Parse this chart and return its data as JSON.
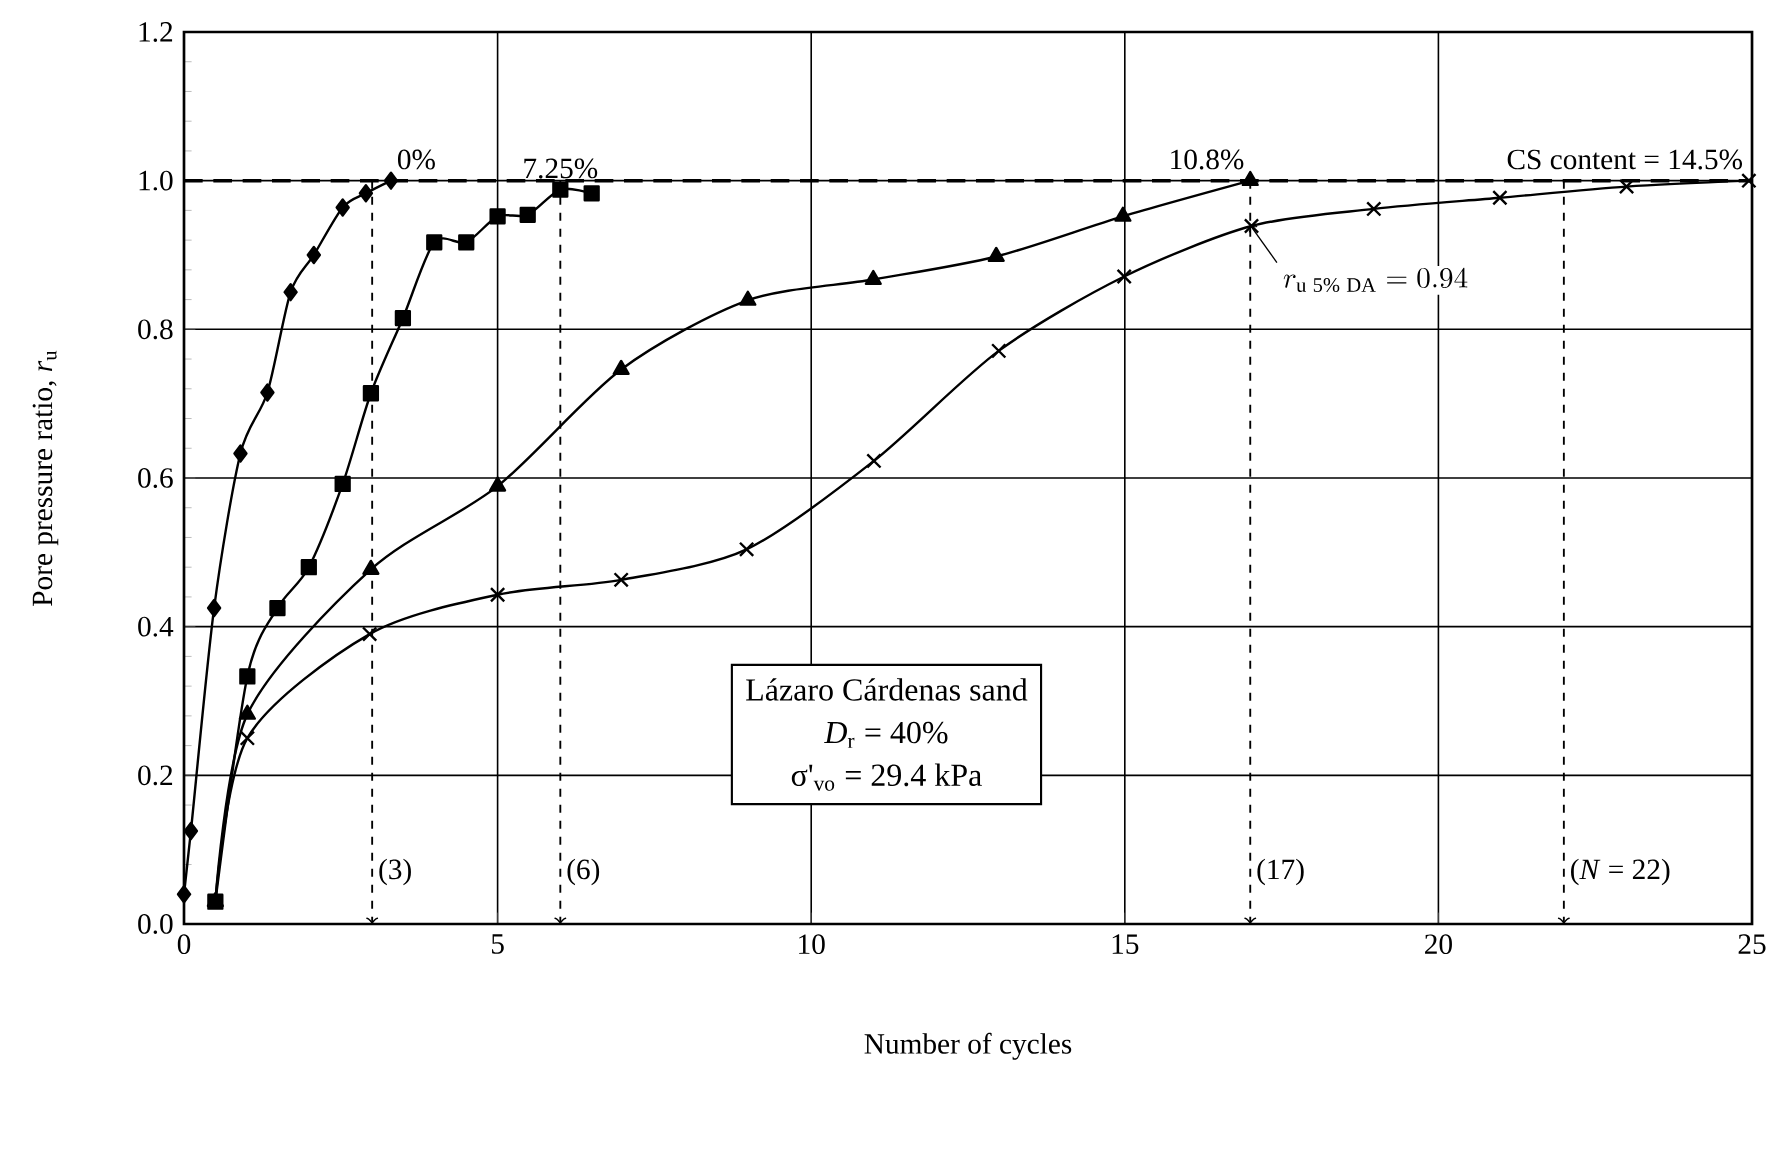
{
  "chart_data": {
    "type": "line",
    "xlabel": "Number of cycles",
    "ylabel": "Pore pressure ratio, *r*$_{u}$",
    "xlim": [
      0,
      25
    ],
    "ylim": [
      0,
      1.2
    ],
    "xticks": [
      0,
      5,
      10,
      15,
      20,
      25
    ],
    "yticks": [
      {
        "value": 0,
        "label": "0.0"
      },
      {
        "value": 0.2,
        "label": "0.2"
      },
      {
        "value": 0.4,
        "label": "0.4"
      },
      {
        "value": 0.6,
        "label": "0.6"
      },
      {
        "value": 0.8,
        "label": "0.8"
      },
      {
        "value": 1.0,
        "label": "1.0"
      },
      {
        "value": 1.2,
        "label": "1.2"
      }
    ],
    "grid": true,
    "series": [
      {
        "name": "0%",
        "color": "#000000",
        "marker": "diamond",
        "x": [
          0,
          0.11,
          0.48,
          0.9,
          1.33,
          1.7,
          2.07,
          2.53,
          2.9,
          3.3
        ],
        "values": [
          0.04,
          0.125,
          0.425,
          0.633,
          0.715,
          0.85,
          0.9,
          0.964,
          0.983,
          1.0
        ]
      },
      {
        "name": "7.25%",
        "color": "#000000",
        "marker": "square",
        "x": [
          0.5,
          1.01,
          1.49,
          1.99,
          2.53,
          2.98,
          3.49,
          3.99,
          4.5,
          5.0,
          5.48,
          6.0,
          6.5
        ],
        "values": [
          0.03,
          0.333,
          0.425,
          0.48,
          0.592,
          0.714,
          0.815,
          0.917,
          0.917,
          0.952,
          0.954,
          0.988,
          0.983
        ]
      },
      {
        "name": "10.8%",
        "color": "#000000",
        "marker": "triangle",
        "x": [
          0.5,
          1.01,
          2.98,
          5.0,
          6.97,
          8.99,
          10.99,
          12.95,
          14.97,
          17.0
        ],
        "values": [
          0.03,
          0.282,
          0.477,
          0.589,
          0.746,
          0.839,
          0.867,
          0.898,
          0.952,
          1.0
        ]
      },
      {
        "name": "CS content = 14.5%",
        "color": "#000000",
        "marker": "cross",
        "x": [
          0.5,
          1.01,
          2.96,
          5.0,
          6.97,
          8.97,
          11.0,
          12.99,
          14.99,
          17.02,
          18.97,
          20.98,
          23.0,
          24.95
        ],
        "values": [
          0.03,
          0.25,
          0.39,
          0.443,
          0.463,
          0.504,
          0.623,
          0.771,
          0.871,
          0.939,
          0.962,
          0.977,
          0.992,
          1.0
        ]
      }
    ],
    "ref_lines": [
      {
        "axis": "y",
        "value": 1.0,
        "label": null,
        "line_style": "dashed"
      },
      {
        "axis": "x",
        "value": 3,
        "label": "(3)",
        "line_style": "dashed"
      },
      {
        "axis": "x",
        "value": 6,
        "label": "(6)",
        "line_style": "dashed"
      },
      {
        "axis": "x",
        "value": 17,
        "label": "(17)",
        "line_style": "dashed"
      },
      {
        "axis": "x",
        "value": 22,
        "label": "(*N* = 22)",
        "line_style": "dashed"
      }
    ],
    "annotations": [
      {
        "text": "r_{\\mathrm{u\\;5\\%\\;DA}} = 0.94",
        "x": 17,
        "y": 0.94
      },
      "Lázaro Cárdenas sand",
      "*D*$_{r}$ = 40%",
      "σ'$_{vo}$ = 29.4 kPa"
    ]
  }
}
